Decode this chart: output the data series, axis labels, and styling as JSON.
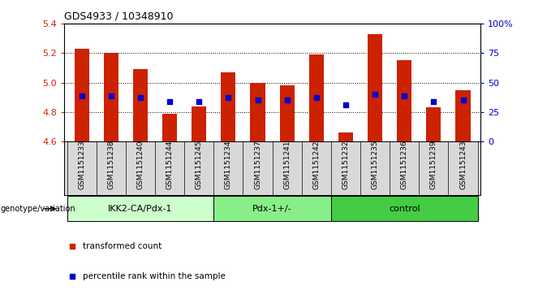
{
  "title": "GDS4933 / 10348910",
  "samples": [
    "GSM1151233",
    "GSM1151238",
    "GSM1151240",
    "GSM1151244",
    "GSM1151245",
    "GSM1151234",
    "GSM1151237",
    "GSM1151241",
    "GSM1151242",
    "GSM1151232",
    "GSM1151235",
    "GSM1151236",
    "GSM1151239",
    "GSM1151243"
  ],
  "transformed_count": [
    5.23,
    5.2,
    5.09,
    4.79,
    4.84,
    5.07,
    5.0,
    4.98,
    5.19,
    4.66,
    5.33,
    5.15,
    4.83,
    4.95
  ],
  "percentile_rank": [
    4.91,
    4.91,
    4.9,
    4.87,
    4.87,
    4.9,
    4.88,
    4.88,
    4.9,
    4.85,
    4.92,
    4.91,
    4.87,
    4.88
  ],
  "ymin": 4.6,
  "ymax": 5.4,
  "yticks": [
    4.6,
    4.8,
    5.0,
    5.2,
    5.4
  ],
  "right_yticks": [
    0,
    25,
    50,
    75,
    100
  ],
  "right_yticklabels": [
    "0",
    "25",
    "50",
    "75",
    "100%"
  ],
  "groups": [
    {
      "label": "IKK2-CA/Pdx-1",
      "start": 0,
      "end": 5,
      "color": "#ccffcc"
    },
    {
      "label": "Pdx-1+/-",
      "start": 5,
      "end": 9,
      "color": "#88ee88"
    },
    {
      "label": "control",
      "start": 9,
      "end": 14,
      "color": "#44cc44"
    }
  ],
  "bar_color": "#cc2200",
  "dot_color": "#0000cc",
  "bar_width": 0.5,
  "dot_size": 25,
  "ylabel_left_color": "#cc2200",
  "ylabel_right_color": "#0000cc",
  "grid_color": "#000000",
  "background_color": "#ffffff",
  "tick_bg_color": "#d8d8d8",
  "legend_items": [
    "transformed count",
    "percentile rank within the sample"
  ],
  "legend_colors": [
    "#cc2200",
    "#0000cc"
  ],
  "genotype_label": "genotype/variation"
}
